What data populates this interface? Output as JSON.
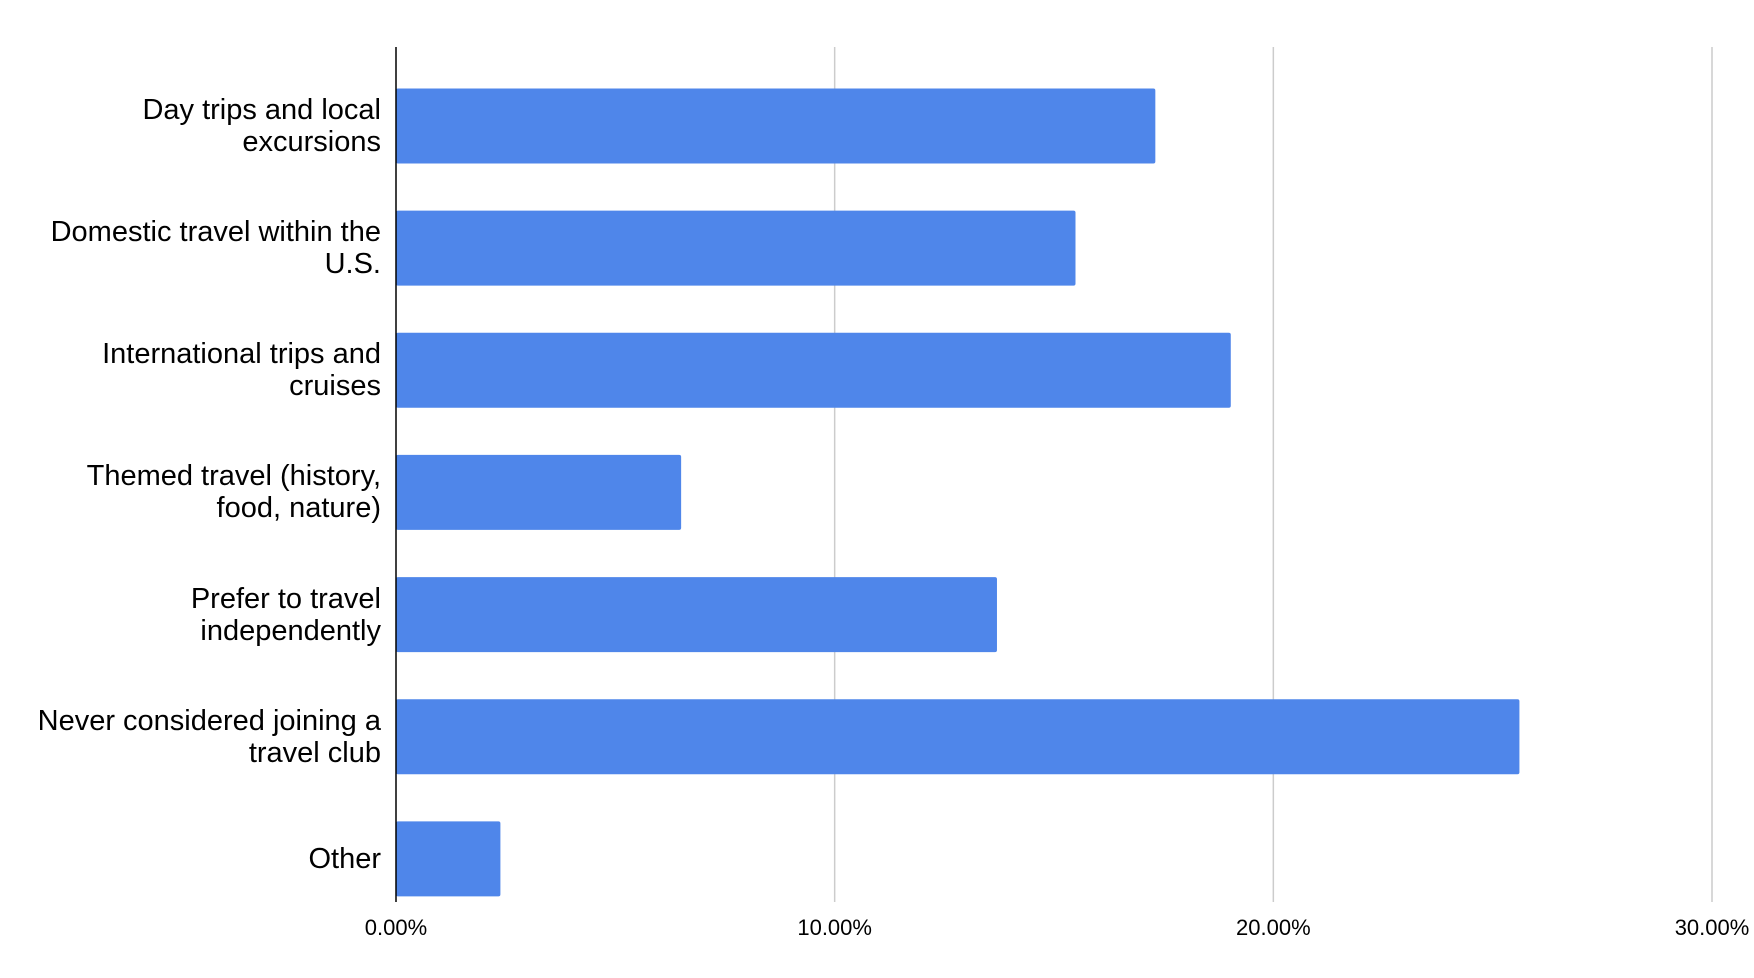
{
  "chart_data": {
    "type": "bar",
    "orientation": "horizontal",
    "categories": [
      "Day trips and local excursions",
      "Domestic travel within the U.S.",
      "International trips and cruises",
      "Themed travel (history, food, nature)",
      "Prefer to travel independently",
      "Never considered joining a travel club",
      "Other"
    ],
    "values": [
      17.31,
      15.49,
      19.03,
      6.5,
      13.7,
      25.61,
      2.38
    ],
    "color": "#4f86ea",
    "xlim": [
      0,
      30
    ],
    "xticks": [
      {
        "value": 0,
        "label": "0.00%"
      },
      {
        "value": 10,
        "label": "10.00%"
      },
      {
        "value": 20,
        "label": "20.00%"
      },
      {
        "value": 30,
        "label": "30.00%"
      }
    ],
    "grid": true
  }
}
